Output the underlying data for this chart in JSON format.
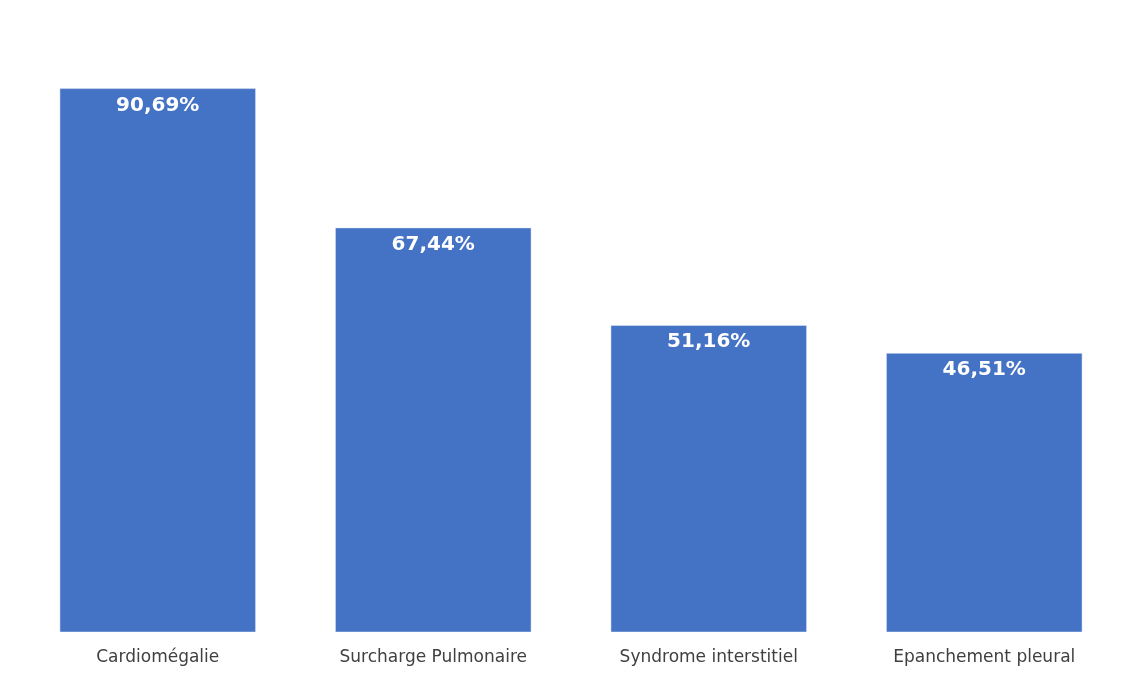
{
  "chart_data": {
    "type": "bar",
    "categories": [
      "Cardiomégalie",
      "Surcharge Pulmonaire",
      "Syndrome interstitiel",
      "Epanchement pleural"
    ],
    "values": [
      90.69,
      67.44,
      51.16,
      46.51
    ],
    "value_labels": [
      "90,69%",
      "67,44%",
      "51,16%",
      "46,51%"
    ],
    "color": "#4472c4"
  }
}
